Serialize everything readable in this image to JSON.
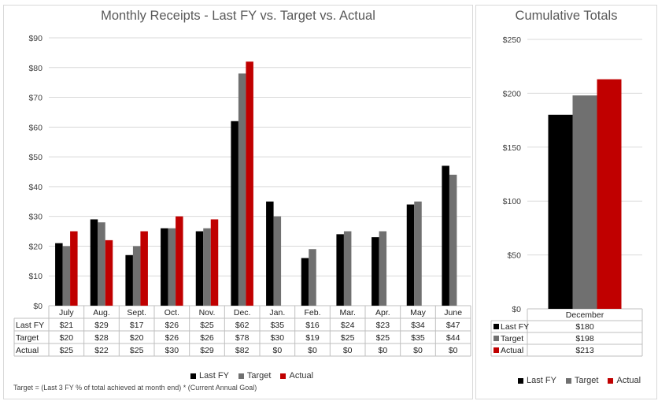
{
  "chart_data": [
    {
      "type": "bar",
      "title": "Monthly Receipts -  Last FY vs. Target vs. Actual",
      "categories": [
        "July",
        "Aug.",
        "Sept.",
        "Oct.",
        "Nov.",
        "Dec.",
        "Jan.",
        "Feb.",
        "Mar.",
        "Apr.",
        "May",
        "June"
      ],
      "yticks": [
        "$0",
        "$10",
        "$20",
        "$30",
        "$40",
        "$50",
        "$60",
        "$70",
        "$80",
        "$90"
      ],
      "ylim": [
        0,
        90
      ],
      "series": [
        {
          "name": "Last FY",
          "color": "#000000",
          "values": [
            21,
            29,
            17,
            26,
            25,
            62,
            35,
            16,
            24,
            23,
            34,
            47
          ],
          "labels": [
            "$21",
            "$29",
            "$17",
            "$26",
            "$25",
            "$62",
            "$35",
            "$16",
            "$24",
            "$23",
            "$34",
            "$47"
          ]
        },
        {
          "name": "Target",
          "color": "#707070",
          "values": [
            20,
            28,
            20,
            26,
            26,
            78,
            30,
            19,
            25,
            25,
            35,
            44
          ],
          "labels": [
            "$20",
            "$28",
            "$20",
            "$26",
            "$26",
            "$78",
            "$30",
            "$19",
            "$25",
            "$25",
            "$35",
            "$44"
          ]
        },
        {
          "name": "Actual",
          "color": "#c00000",
          "values": [
            25,
            22,
            25,
            30,
            29,
            82,
            0,
            0,
            0,
            0,
            0,
            0
          ],
          "labels": [
            "$25",
            "$22",
            "$25",
            "$30",
            "$29",
            "$82",
            "$0",
            "$0",
            "$0",
            "$0",
            "$0",
            "$0"
          ]
        }
      ],
      "legend": "bottom",
      "footnote": "Target = (Last 3 FY % of total achieved at month end) * (Current Annual Goal)"
    },
    {
      "type": "bar",
      "title": "Cumulative Totals",
      "categories": [
        "December"
      ],
      "yticks": [
        "$0",
        "$50",
        "$100",
        "$150",
        "$200",
        "$250"
      ],
      "ylim": [
        0,
        250
      ],
      "series": [
        {
          "name": "Last FY",
          "color": "#000000",
          "values": [
            180
          ],
          "labels": [
            "$180"
          ]
        },
        {
          "name": "Target",
          "color": "#707070",
          "values": [
            198
          ],
          "labels": [
            "$198"
          ]
        },
        {
          "name": "Actual",
          "color": "#c00000",
          "values": [
            213
          ],
          "labels": [
            "$213"
          ]
        }
      ],
      "legend": "bottom"
    }
  ]
}
